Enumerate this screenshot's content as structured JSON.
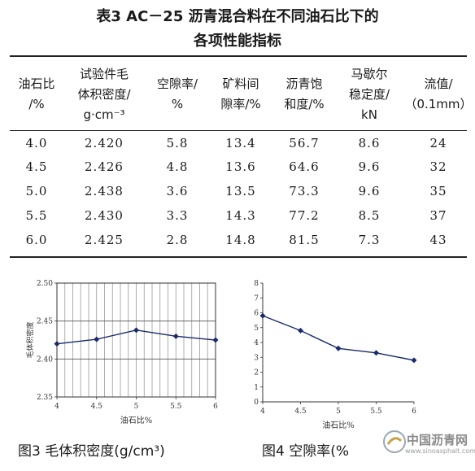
{
  "table": {
    "title_line1": "表3   AC－25 沥青混合料在不同油石比下的",
    "title_line2": "各项性能指标",
    "headers": [
      [
        "油石比",
        "/%"
      ],
      [
        "试验件毛",
        "体积密度/",
        "g·cm⁻³"
      ],
      [
        "空隙率/",
        "%"
      ],
      [
        "矿料间",
        "隙率/%"
      ],
      [
        "沥青饱",
        "和度/%"
      ],
      [
        "马歇尔",
        "稳定度/",
        "kN"
      ],
      [
        "流值/",
        "（0.1mm）"
      ]
    ],
    "rows": [
      [
        "4.0",
        "2.420",
        "5.8",
        "13.4",
        "56.7",
        "8.6",
        "24"
      ],
      [
        "4.5",
        "2.426",
        "4.8",
        "13.6",
        "64.6",
        "9.6",
        "32"
      ],
      [
        "5.0",
        "2.438",
        "3.6",
        "13.5",
        "73.3",
        "9.6",
        "35"
      ],
      [
        "5.5",
        "2.430",
        "3.3",
        "14.3",
        "77.2",
        "8.5",
        "37"
      ],
      [
        "6.0",
        "2.425",
        "2.8",
        "14.8",
        "81.5",
        "7.3",
        "43"
      ]
    ]
  },
  "chart_data": [
    {
      "type": "line",
      "x": [
        4,
        4.5,
        5,
        5.5,
        6
      ],
      "y": [
        2.42,
        2.426,
        2.438,
        2.43,
        2.425
      ],
      "xlabel": "油石比%",
      "ylabel": "毛体积密度",
      "xlim": [
        4,
        6
      ],
      "ylim": [
        2.35,
        2.5
      ],
      "xticks": [
        "4",
        "4.5",
        "5",
        "5.5",
        "6"
      ],
      "yticks": [
        "2.35",
        "2.40",
        "2.45",
        "2.50"
      ],
      "grid": true,
      "color": "#1a2a6c"
    },
    {
      "type": "line",
      "x": [
        4,
        4.5,
        5,
        5.5,
        6
      ],
      "y": [
        5.8,
        4.8,
        3.6,
        3.3,
        2.8
      ],
      "xlabel": "油石比%",
      "ylabel": "空隙率%",
      "xlim": [
        4,
        6
      ],
      "ylim": [
        0,
        8
      ],
      "xticks": [
        "4",
        "4.5",
        "5",
        "5.5",
        "6"
      ],
      "yticks": [
        "0",
        "1",
        "2",
        "3",
        "4",
        "5",
        "6",
        "7",
        "8"
      ],
      "grid": false,
      "color": "#1a2a6c"
    }
  ],
  "captions": {
    "fig3": "图3   毛体积密度(g/cm³)",
    "fig4": "图4   空隙率(%"
  },
  "watermark": {
    "name": "中国沥青网",
    "url": "www.sinoasphalt.com"
  }
}
